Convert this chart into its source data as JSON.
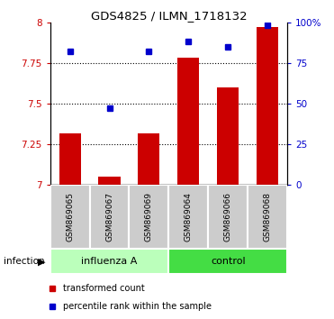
{
  "title": "GDS4825 / ILMN_1718132",
  "samples": [
    "GSM869065",
    "GSM869067",
    "GSM869069",
    "GSM869064",
    "GSM869066",
    "GSM869068"
  ],
  "red_values": [
    7.32,
    7.05,
    7.32,
    7.78,
    7.6,
    7.97
  ],
  "blue_values": [
    82,
    47,
    82,
    88,
    85,
    98
  ],
  "ylim_left": [
    7.0,
    8.0
  ],
  "ylim_right": [
    0,
    100
  ],
  "yticks_left": [
    7.0,
    7.25,
    7.5,
    7.75,
    8.0
  ],
  "yticks_right": [
    0,
    25,
    50,
    75,
    100
  ],
  "ytick_labels_left": [
    "7",
    "7.25",
    "7.5",
    "7.75",
    "8"
  ],
  "ytick_labels_right": [
    "0",
    "25",
    "50",
    "75",
    "100%"
  ],
  "grid_lines": [
    7.25,
    7.5,
    7.75
  ],
  "group1_label": "influenza A",
  "group2_label": "control",
  "infection_label": "infection",
  "legend_red": "transformed count",
  "legend_blue": "percentile rank within the sample",
  "red_color": "#cc0000",
  "blue_color": "#0000cc",
  "bar_width": 0.55,
  "base_value": 7.0,
  "group1_bg": "#bbffbb",
  "group2_bg": "#44dd44",
  "sample_bg": "#cccccc",
  "fig_bg": "#ffffff"
}
